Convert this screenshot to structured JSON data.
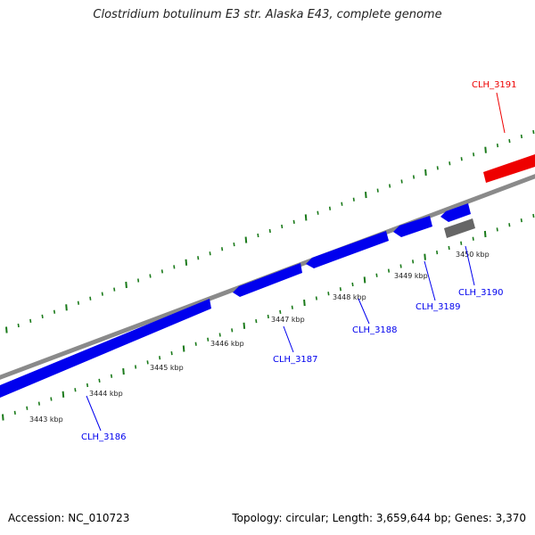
{
  "title": "Clostridium botulinum E3 str. Alaska E43, complete genome",
  "footer": {
    "accession": "Accession: NC_010723",
    "summary": "Topology: circular; Length: 3,659,644 bp; Genes: 3,370"
  },
  "ticks": [
    "3443 kbp",
    "3444 kbp",
    "3445 kbp",
    "3446 kbp",
    "3447 kbp",
    "3448 kbp",
    "3449 kbp",
    "3450 kbp"
  ],
  "genes": [
    {
      "label": "CLH_3186",
      "color": "#0000ee"
    },
    {
      "label": "CLH_3187",
      "color": "#0000ee"
    },
    {
      "label": "CLH_3188",
      "color": "#0000ee"
    },
    {
      "label": "CLH_3189",
      "color": "#0000ee"
    },
    {
      "label": "CLH_3190",
      "color": "#0000ee"
    },
    {
      "label": "CLH_3191",
      "color": "#ee0000"
    }
  ],
  "colors": {
    "forward_gene": "#ee0000",
    "reverse_gene": "#0000ee",
    "other_feature": "#666666",
    "backbone": "#888888",
    "tick": "#1a7a1a"
  }
}
